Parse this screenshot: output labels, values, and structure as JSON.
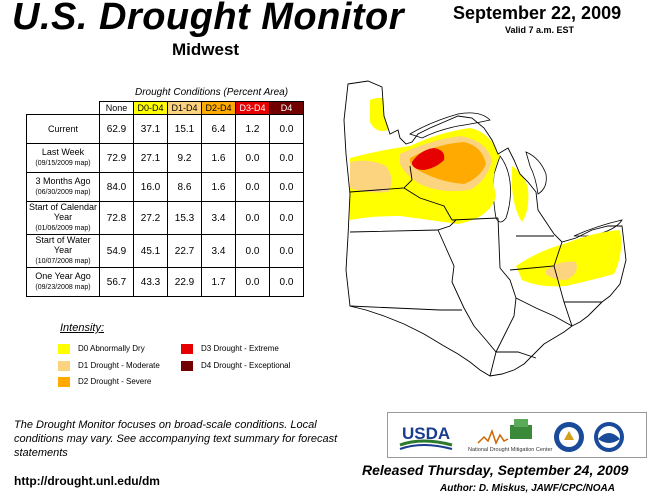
{
  "header": {
    "title": "U.S. Drought Monitor",
    "region": "Midwest",
    "date": "September 22, 2009",
    "valid": "Valid 7 a.m. EST"
  },
  "table": {
    "caption": "Drought Conditions (Percent Area)",
    "columns": [
      "None",
      "D0-D4",
      "D1-D4",
      "D2-D4",
      "D3-D4",
      "D4"
    ],
    "column_colors": [
      "#ffffff",
      "#ffff00",
      "#fcd37f",
      "#ffaa00",
      "#e60000",
      "#730000"
    ],
    "column_text_colors": [
      "#000000",
      "#000000",
      "#000000",
      "#000000",
      "#ffffff",
      "#ffffff"
    ],
    "rows": [
      {
        "label": "Current",
        "sub": "",
        "values": [
          "62.9",
          "37.1",
          "15.1",
          "6.4",
          "1.2",
          "0.0"
        ]
      },
      {
        "label": "Last Week",
        "sub": "(09/15/2009 map)",
        "values": [
          "72.9",
          "27.1",
          "9.2",
          "1.6",
          "0.0",
          "0.0"
        ]
      },
      {
        "label": "3 Months Ago",
        "sub": "(06/30/2009 map)",
        "values": [
          "84.0",
          "16.0",
          "8.6",
          "1.6",
          "0.0",
          "0.0"
        ]
      },
      {
        "label": "Start of Calendar Year",
        "sub": "(01/06/2009 map)",
        "values": [
          "72.8",
          "27.2",
          "15.3",
          "3.4",
          "0.0",
          "0.0"
        ]
      },
      {
        "label": "Start of Water Year",
        "sub": "(10/07/2008 map)",
        "values": [
          "54.9",
          "45.1",
          "22.7",
          "3.4",
          "0.0",
          "0.0"
        ]
      },
      {
        "label": "One Year Ago",
        "sub": "(09/23/2008 map)",
        "values": [
          "56.7",
          "43.3",
          "22.9",
          "1.7",
          "0.0",
          "0.0"
        ]
      }
    ]
  },
  "legend": {
    "title": "Intensity:",
    "items": [
      {
        "label": "D0 Abnormally Dry",
        "color": "#ffff00"
      },
      {
        "label": "D1 Drought - Moderate",
        "color": "#fcd37f"
      },
      {
        "label": "D2 Drought - Severe",
        "color": "#ffaa00"
      },
      {
        "label": "D3 Drought - Extreme",
        "color": "#e60000"
      },
      {
        "label": "D4 Drought - Exceptional",
        "color": "#730000"
      }
    ]
  },
  "footer": {
    "note": "The Drought Monitor focuses on broad-scale conditions. Local conditions may vary. See accompanying text summary for forecast statements",
    "url": "http://drought.unl.edu/dm",
    "released": "Released Thursday, September 24, 2009",
    "author": "Author: D. Miskus, JAWF/CPC/NOAA"
  },
  "logos": {
    "usda": "USDA",
    "ndmc": "National Drought Mitigation Center"
  }
}
